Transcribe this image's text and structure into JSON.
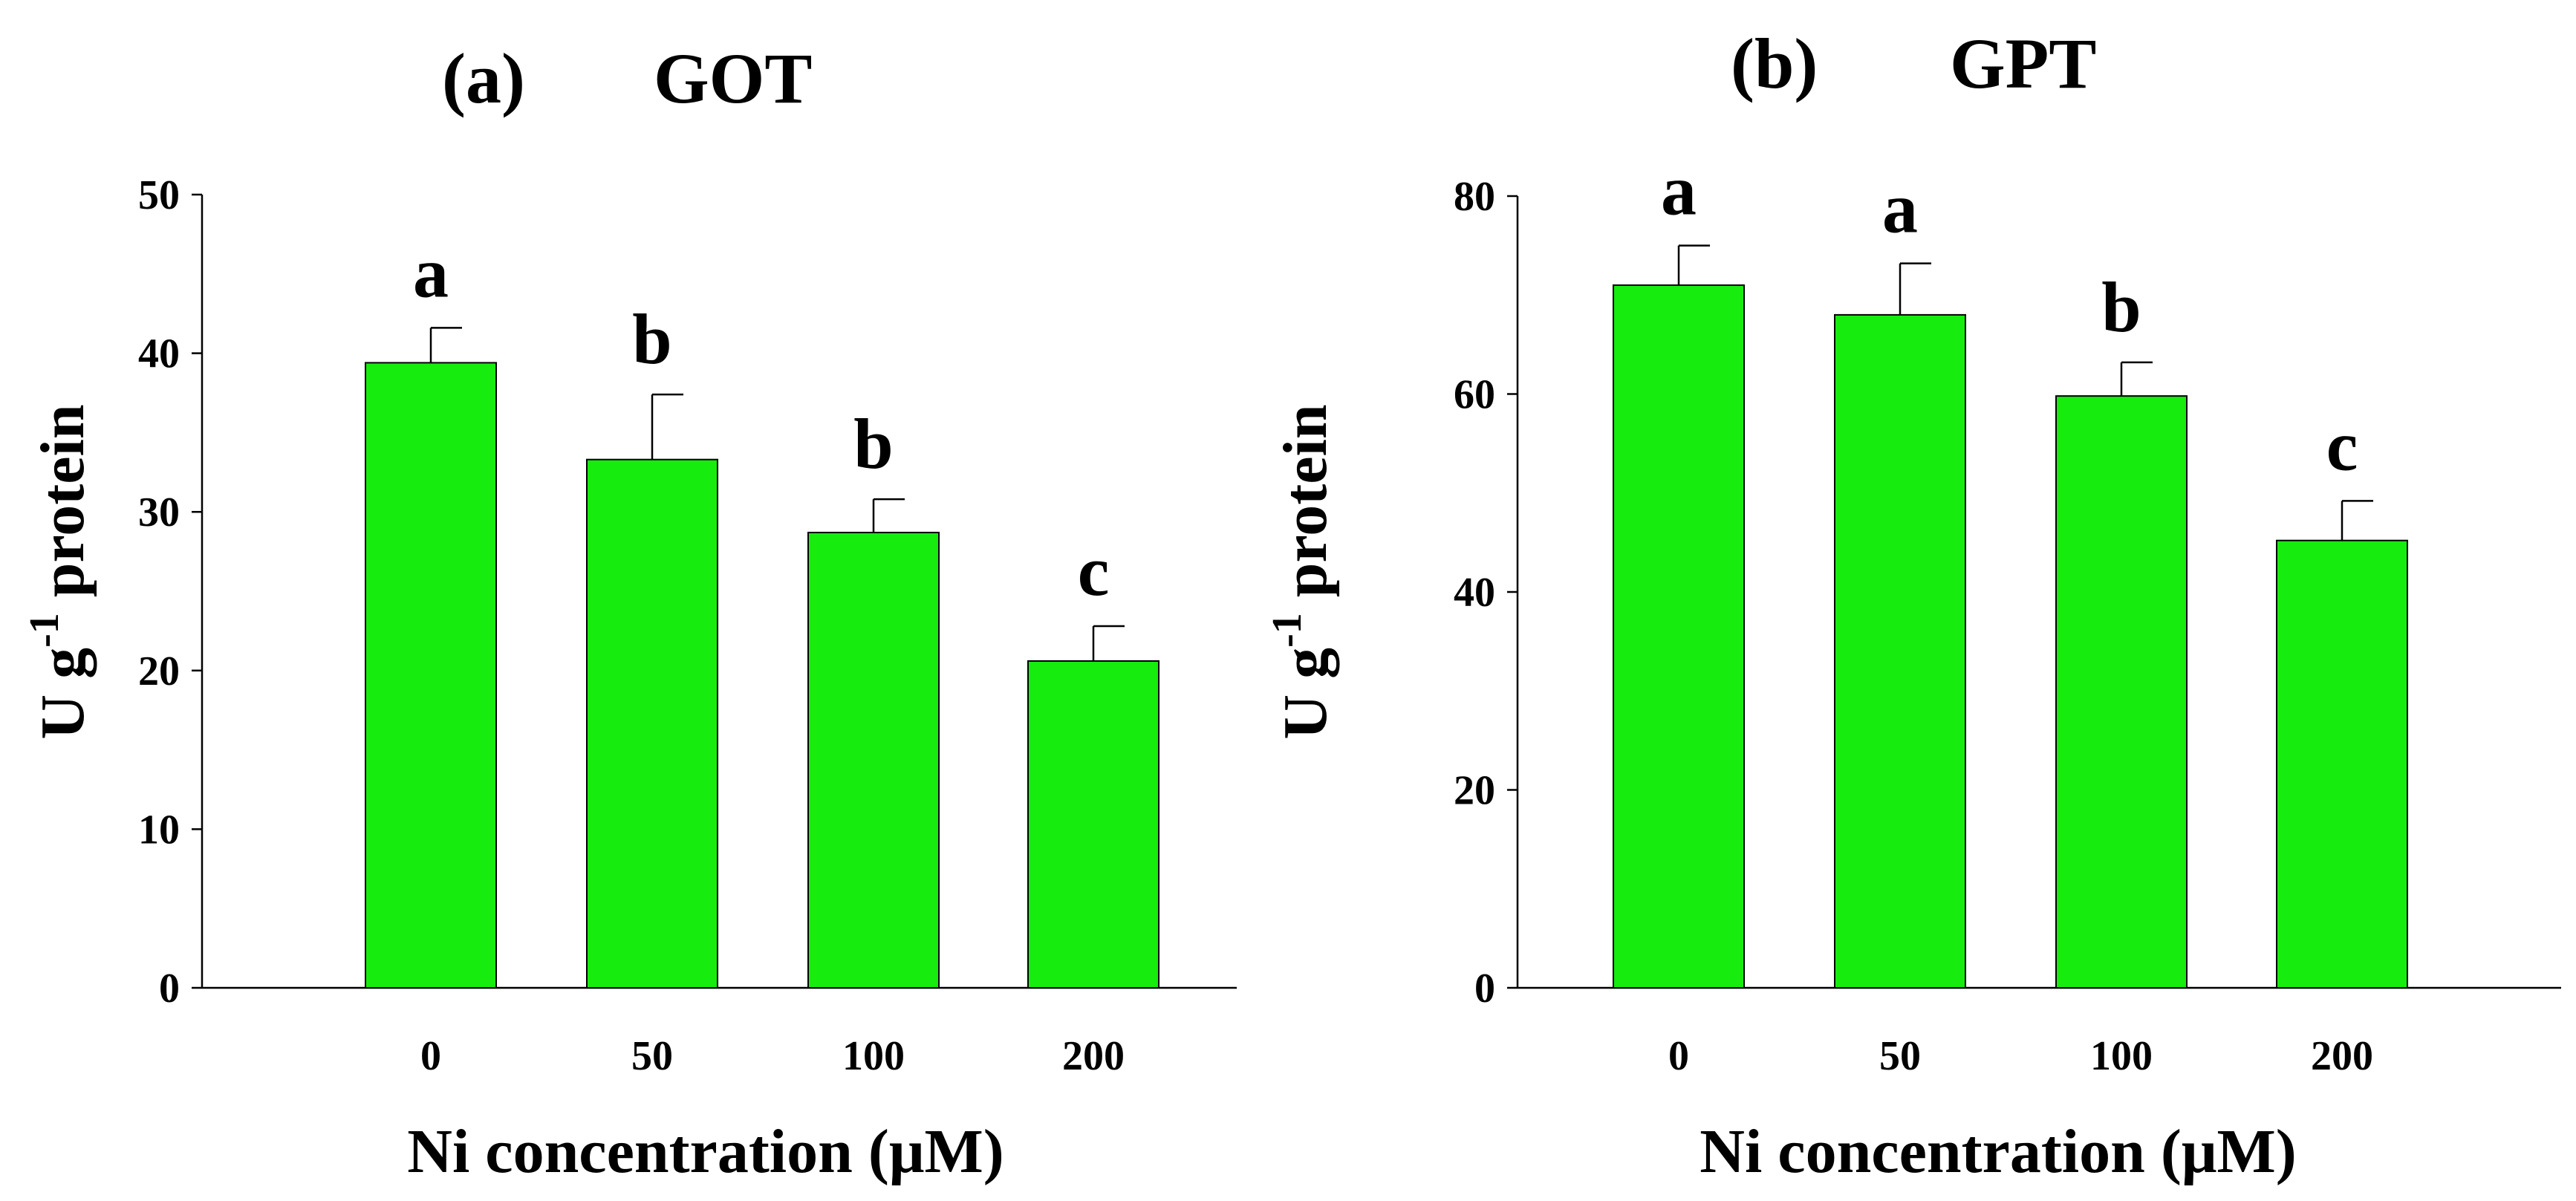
{
  "figure": {
    "bar_color": "#16ec0e",
    "panels": [
      {
        "title": "(a)",
        "subtitle": "GOT",
        "ylabel_main": "U g",
        "ylabel_sup": "-1",
        "ylabel_tail": " protein",
        "xlabel": "Ni concentration (μM)"
      },
      {
        "title": "(b)",
        "subtitle": "GPT",
        "ylabel_main": "U g",
        "ylabel_sup": "-1",
        "ylabel_tail": " protein",
        "xlabel": "Ni concentration (μM)"
      }
    ]
  },
  "chart_data": [
    {
      "type": "bar",
      "title": "GOT",
      "xlabel": "Ni concentration (μM)",
      "ylabel": "U g-1 protein",
      "categories": [
        "0",
        "50",
        "100",
        "200"
      ],
      "values": [
        39.4,
        33.3,
        28.7,
        20.6
      ],
      "errors": [
        2.2,
        4.1,
        2.1,
        2.2
      ],
      "significance": [
        "a",
        "b",
        "b",
        "c"
      ],
      "ylim": [
        0,
        50
      ],
      "yticks": [
        0,
        10,
        20,
        30,
        40,
        50
      ]
    },
    {
      "type": "bar",
      "title": "GPT",
      "xlabel": "Ni concentration (μM)",
      "ylabel": "U g-1 protein",
      "categories": [
        "0",
        "50",
        "100",
        "200"
      ],
      "values": [
        71.0,
        68.0,
        59.8,
        45.2
      ],
      "errors": [
        4.0,
        5.2,
        3.4,
        4.0
      ],
      "significance": [
        "a",
        "a",
        "b",
        "c"
      ],
      "ylim": [
        0,
        80
      ],
      "yticks": [
        0,
        20,
        40,
        60,
        80
      ]
    }
  ]
}
